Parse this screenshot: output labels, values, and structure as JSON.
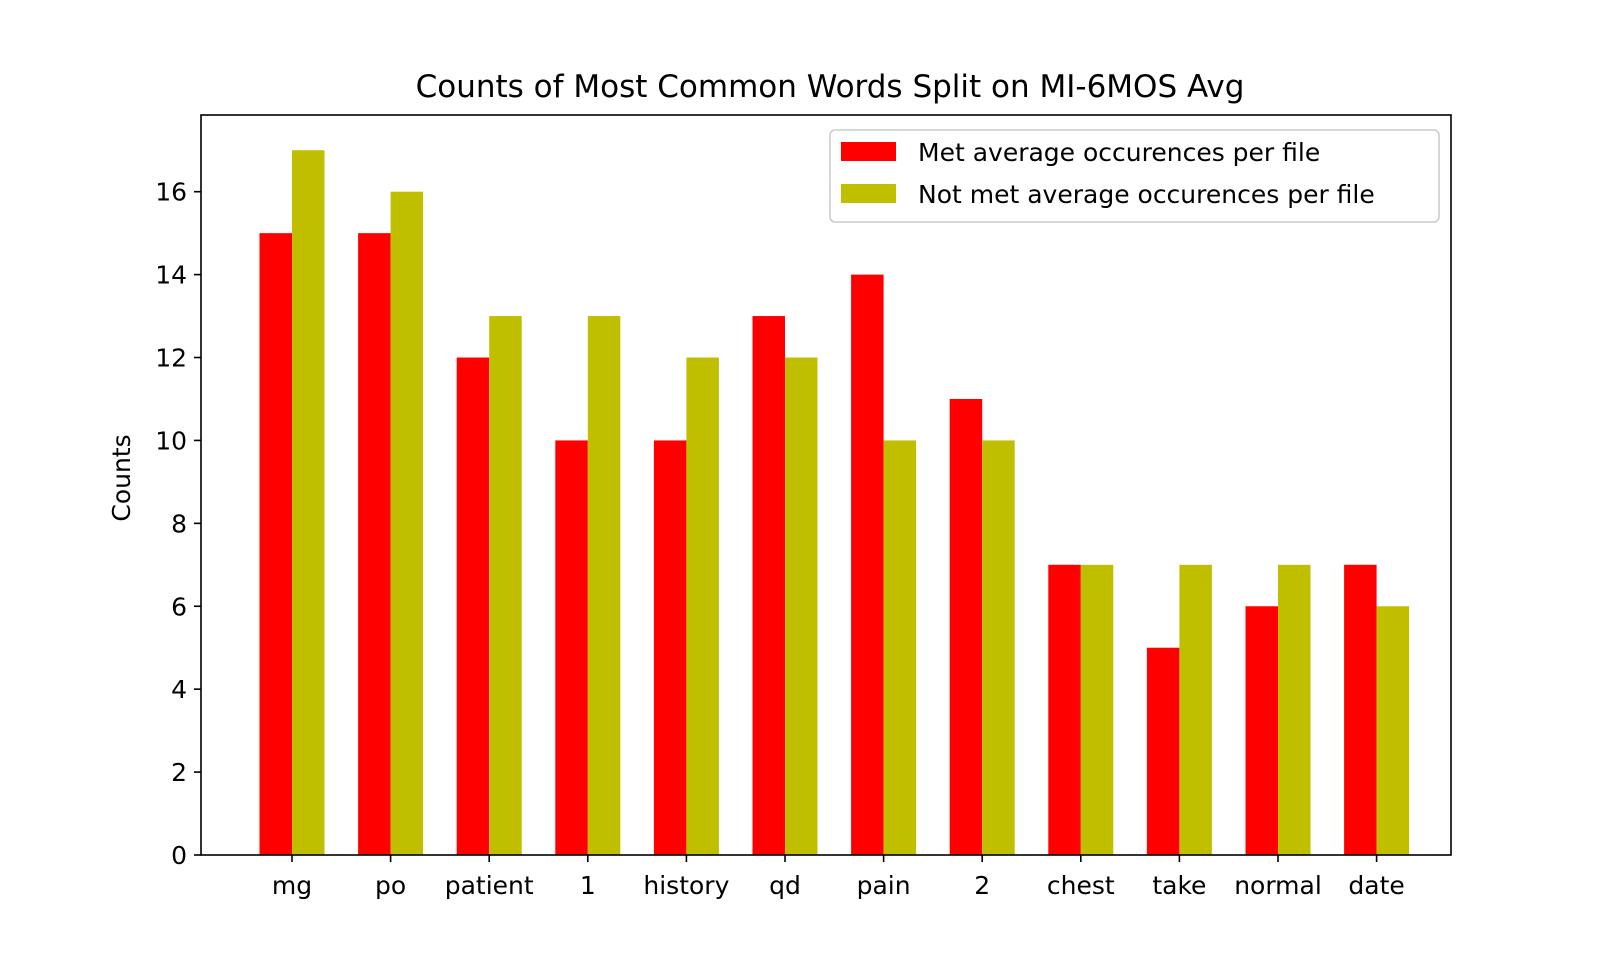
{
  "chart_data": {
    "type": "bar",
    "title": "Counts of Most Common Words Split on MI-6MOS Avg",
    "xlabel": "",
    "ylabel": "Counts",
    "categories": [
      "mg",
      "po",
      "patient",
      "1",
      "history",
      "qd",
      "pain",
      "2",
      "chest",
      "take",
      "normal",
      "date"
    ],
    "series": [
      {
        "name": "Met average occurences per file",
        "color": "#ff0000",
        "values": [
          15,
          15,
          12,
          10,
          10,
          13,
          14,
          11,
          7,
          5,
          6,
          7
        ]
      },
      {
        "name": "Not met average occurences per file",
        "color": "#bfbf00",
        "values": [
          17,
          16,
          13,
          13,
          12,
          12,
          10,
          10,
          7,
          7,
          7,
          6
        ]
      }
    ],
    "ylim": [
      0,
      17.85
    ],
    "yticks": [
      0,
      2,
      4,
      6,
      8,
      10,
      12,
      14,
      16
    ],
    "grid": false,
    "legend_position": "top-right"
  }
}
